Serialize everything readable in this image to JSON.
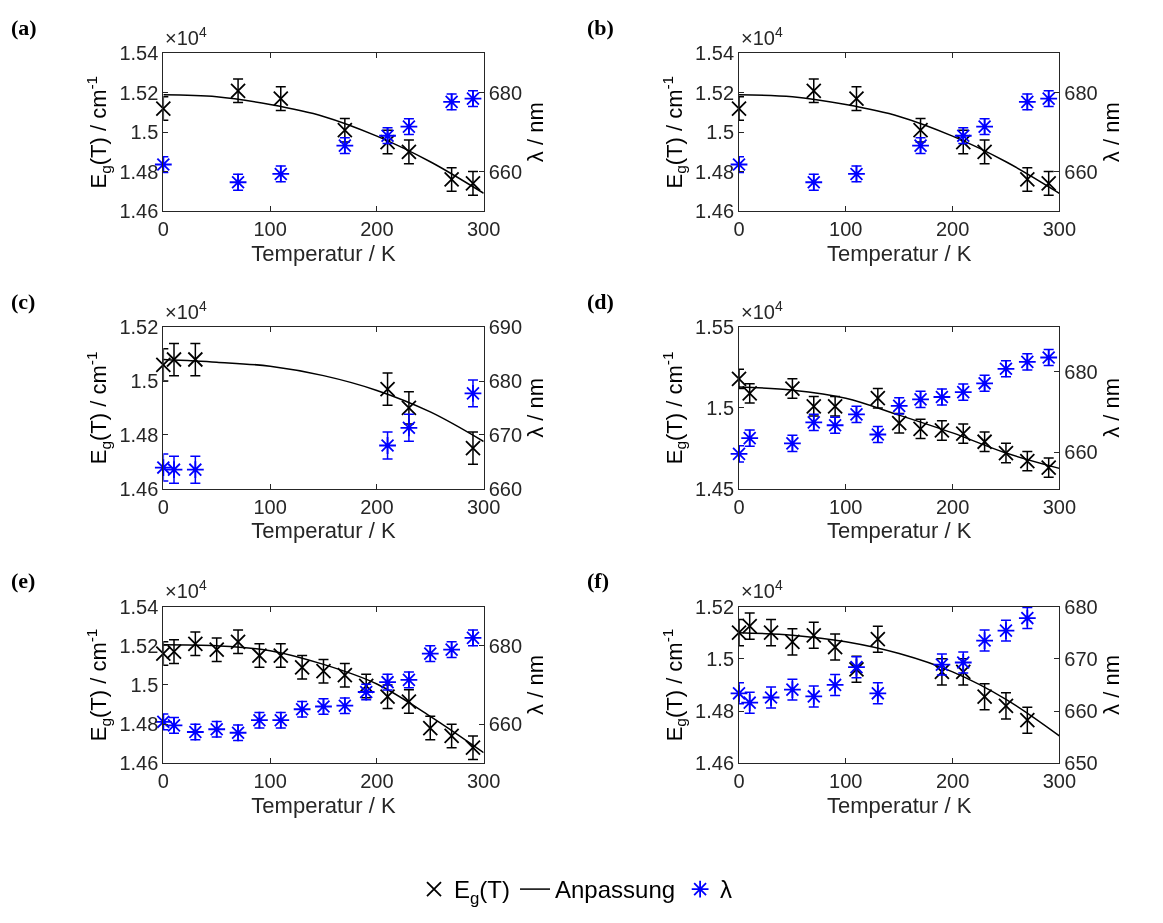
{
  "chart_data": [
    {
      "type": "scatter",
      "title": "(a)",
      "xlabel": "Temperatur / K",
      "ylabel": "E$_{g}$(T) / cm$^{-1}$",
      "y2label": "λ / nm",
      "annotations": [
        "×10$^{4}$"
      ],
      "legend": "bottom",
      "xlim": [
        0,
        300
      ],
      "xticks": [
        0,
        100,
        200,
        300
      ],
      "ylim": [
        1.46,
        1.54
      ],
      "yticks": [
        1.46,
        1.48,
        1.5,
        1.52,
        1.54
      ],
      "y2lim": [
        650,
        690
      ],
      "y2ticks": [
        660,
        680
      ],
      "series": [
        {
          "name": "E$_{g}$(T)",
          "marker": "cross",
          "color": "#000000",
          "x": [
            0,
            70,
            110,
            170,
            210,
            230,
            270,
            290
          ],
          "values": [
            1.512,
            1.521,
            1.517,
            1.501,
            1.495,
            1.49,
            1.476,
            1.474
          ],
          "errors": [
            0.006,
            0.006,
            0.006,
            0.006,
            0.006,
            0.006,
            0.006,
            0.006
          ]
        },
        {
          "name": "Anpassung",
          "type": "line",
          "color": "#000000",
          "x": [
            0,
            50,
            100,
            150,
            200,
            250,
            300
          ],
          "values": [
            1.519,
            1.518,
            1.514,
            1.508,
            1.498,
            1.485,
            1.469
          ]
        },
        {
          "name": "λ",
          "marker": "cross",
          "axis": "y2",
          "color": "#0000ff",
          "x": [
            0,
            70,
            110,
            170,
            210,
            230,
            270,
            290
          ],
          "values": [
            661.8,
            657.3,
            659.4,
            666.6,
            669.1,
            671.4,
            677.7,
            678.5
          ],
          "errors": [
            2,
            2,
            2,
            2,
            2,
            2,
            2,
            2
          ]
        }
      ]
    },
    {
      "type": "scatter",
      "title": "(b)",
      "xlabel": "Temperatur / K",
      "ylabel": "E$_{g}$(T) / cm$^{-1}$",
      "y2label": "λ / nm",
      "annotations": [
        "×10$^{4}$"
      ],
      "legend": "bottom",
      "xlim": [
        0,
        300
      ],
      "xticks": [
        0,
        100,
        200,
        300
      ],
      "ylim": [
        1.46,
        1.54
      ],
      "yticks": [
        1.46,
        1.48,
        1.5,
        1.52,
        1.54
      ],
      "y2lim": [
        650,
        690
      ],
      "y2ticks": [
        660,
        680
      ],
      "series": [
        {
          "name": "E$_{g}$(T)",
          "marker": "cross",
          "color": "#000000",
          "x": [
            0,
            70,
            110,
            170,
            210,
            230,
            270,
            290
          ],
          "values": [
            1.512,
            1.521,
            1.517,
            1.501,
            1.495,
            1.49,
            1.476,
            1.474
          ],
          "errors": [
            0.006,
            0.006,
            0.006,
            0.006,
            0.006,
            0.006,
            0.006,
            0.006
          ]
        },
        {
          "name": "Anpassung",
          "type": "line",
          "color": "#000000",
          "x": [
            0,
            50,
            100,
            150,
            200,
            250,
            300
          ],
          "values": [
            1.519,
            1.518,
            1.514,
            1.508,
            1.498,
            1.485,
            1.469
          ]
        },
        {
          "name": "λ",
          "marker": "cross",
          "axis": "y2",
          "color": "#0000ff",
          "x": [
            0,
            70,
            110,
            170,
            210,
            230,
            270,
            290
          ],
          "values": [
            661.8,
            657.3,
            659.4,
            666.6,
            669.1,
            671.4,
            677.7,
            678.5
          ],
          "errors": [
            2,
            2,
            2,
            2,
            2,
            2,
            2,
            2
          ]
        }
      ]
    },
    {
      "type": "scatter",
      "title": "(c)",
      "xlabel": "Temperatur / K",
      "ylabel": "E$_{g}$(T) / cm$^{-1}$",
      "y2label": "λ / nm",
      "annotations": [
        "×10$^{4}$"
      ],
      "legend": "bottom",
      "xlim": [
        0,
        300
      ],
      "xticks": [
        0,
        100,
        200,
        300
      ],
      "ylim": [
        1.46,
        1.52
      ],
      "yticks": [
        1.46,
        1.48,
        1.5,
        1.52
      ],
      "y2lim": [
        660,
        690
      ],
      "y2ticks": [
        660,
        670,
        680,
        690
      ],
      "series": [
        {
          "name": "E$_{g}$(T)",
          "marker": "cross",
          "color": "#000000",
          "x": [
            0,
            10,
            30,
            210,
            230,
            290
          ],
          "values": [
            1.506,
            1.508,
            1.508,
            1.497,
            1.49,
            1.475
          ],
          "errors": [
            0.006,
            0.006,
            0.006,
            0.006,
            0.006,
            0.006
          ]
        },
        {
          "name": "Anpassung",
          "type": "line",
          "color": "#000000",
          "x": [
            0,
            50,
            100,
            150,
            200,
            250,
            300
          ],
          "values": [
            1.508,
            1.507,
            1.5055,
            1.502,
            1.4965,
            1.4885,
            1.4775
          ]
        },
        {
          "name": "λ",
          "marker": "cross",
          "axis": "y2",
          "color": "#0000ff",
          "x": [
            0,
            10,
            30,
            210,
            230,
            290
          ],
          "values": [
            663.9,
            663.5,
            663.5,
            668.0,
            671.3,
            677.7
          ],
          "errors": [
            2.5,
            2.5,
            2.5,
            2.5,
            2.5,
            2.5
          ]
        }
      ]
    },
    {
      "type": "scatter",
      "title": "(d)",
      "xlabel": "Temperatur / K",
      "ylabel": "E$_{g}$(T) / cm$^{-1}$",
      "y2label": "λ / nm",
      "annotations": [
        "×10$^{4}$"
      ],
      "legend": "bottom",
      "xlim": [
        0,
        300
      ],
      "xticks": [
        0,
        100,
        200,
        300
      ],
      "ylim": [
        1.45,
        1.55
      ],
      "yticks": [
        1.45,
        1.5,
        1.55
      ],
      "y2lim": [
        651,
        691
      ],
      "y2ticks": [
        660,
        680
      ],
      "series": [
        {
          "name": "E$_{g}$(T)",
          "marker": "cross",
          "color": "#000000",
          "x": [
            0,
            10,
            50,
            70,
            90,
            130,
            150,
            170,
            190,
            210,
            230,
            250,
            270,
            290
          ],
          "values": [
            1.518,
            1.509,
            1.512,
            1.501,
            1.501,
            1.506,
            1.4905,
            1.487,
            1.486,
            1.484,
            1.479,
            1.472,
            1.467,
            1.463
          ],
          "errors": [
            0.006,
            0.006,
            0.006,
            0.006,
            0.006,
            0.006,
            0.006,
            0.006,
            0.006,
            0.006,
            0.006,
            0.006,
            0.006,
            0.006
          ]
        },
        {
          "name": "Anpassung",
          "type": "line",
          "color": "#000000",
          "x": [
            0,
            50,
            100,
            150,
            200,
            250,
            300
          ],
          "values": [
            1.513,
            1.511,
            1.506,
            1.4955,
            1.4845,
            1.472,
            1.4625
          ]
        },
        {
          "name": "λ",
          "marker": "cross",
          "axis": "y2",
          "color": "#0000ff",
          "x": [
            0,
            10,
            50,
            70,
            90,
            110,
            130,
            150,
            170,
            190,
            210,
            230,
            250,
            270,
            290
          ],
          "values": [
            659.6,
            663.5,
            662.2,
            667.4,
            666.7,
            669.4,
            664.4,
            671.5,
            673.1,
            673.7,
            674.9,
            677.1,
            680.7,
            682.4,
            683.5
          ],
          "errors": [
            2,
            2,
            2,
            2,
            2,
            2,
            2,
            2,
            2,
            2,
            2,
            2,
            2,
            2,
            2
          ]
        }
      ]
    },
    {
      "type": "scatter",
      "title": "(e)",
      "xlabel": "Temperatur / K",
      "ylabel": "E$_{g}$(T) / cm$^{-1}$",
      "y2label": "λ / nm",
      "annotations": [
        "×10$^{4}$"
      ],
      "legend": "bottom",
      "xlim": [
        0,
        300
      ],
      "xticks": [
        0,
        100,
        200,
        300
      ],
      "ylim": [
        1.46,
        1.54
      ],
      "yticks": [
        1.46,
        1.48,
        1.5,
        1.52,
        1.54
      ],
      "y2lim": [
        650,
        690
      ],
      "y2ticks": [
        660,
        680
      ],
      "series": [
        {
          "name": "E$_{g}$(T)",
          "marker": "cross",
          "color": "#000000",
          "x": [
            0,
            10,
            30,
            50,
            70,
            90,
            110,
            130,
            150,
            170,
            190,
            210,
            230,
            250,
            270,
            290
          ],
          "values": [
            1.516,
            1.517,
            1.521,
            1.518,
            1.522,
            1.515,
            1.515,
            1.509,
            1.507,
            1.505,
            1.4995,
            1.494,
            1.4915,
            1.478,
            1.474,
            1.468
          ],
          "errors": [
            0.006,
            0.006,
            0.006,
            0.006,
            0.006,
            0.006,
            0.006,
            0.006,
            0.006,
            0.006,
            0.006,
            0.006,
            0.006,
            0.006,
            0.006,
            0.006
          ]
        },
        {
          "name": "Anpassung",
          "type": "line",
          "color": "#000000",
          "x": [
            0,
            50,
            100,
            150,
            200,
            250,
            300
          ],
          "values": [
            1.5205,
            1.52,
            1.5175,
            1.5105,
            1.5005,
            1.484,
            1.4655
          ]
        },
        {
          "name": "λ",
          "marker": "cross",
          "axis": "y2",
          "color": "#0000ff",
          "x": [
            0,
            10,
            30,
            50,
            70,
            90,
            110,
            130,
            150,
            170,
            190,
            210,
            230,
            250,
            270,
            290
          ],
          "values": [
            660.6,
            659.7,
            658.0,
            658.7,
            657.8,
            661.0,
            661.0,
            663.8,
            664.5,
            664.7,
            668.2,
            670.7,
            671.3,
            678.0,
            679.0,
            682.0
          ],
          "errors": [
            2,
            2,
            2,
            2,
            2,
            2,
            2,
            2,
            2,
            2,
            2,
            2,
            2,
            2,
            2,
            2
          ]
        }
      ]
    },
    {
      "type": "scatter",
      "title": "(f)",
      "xlabel": "Temperatur / K",
      "ylabel": "E$_{g}$(T) / cm$^{-1}$",
      "y2label": "λ / nm",
      "annotations": [
        "×10$^{4}$"
      ],
      "legend": "bottom",
      "xlim": [
        0,
        300
      ],
      "xticks": [
        0,
        100,
        200,
        300
      ],
      "ylim": [
        1.46,
        1.52
      ],
      "yticks": [
        1.46,
        1.48,
        1.5,
        1.52
      ],
      "y2lim": [
        650,
        680
      ],
      "y2ticks": [
        650,
        660,
        670,
        680
      ],
      "series": [
        {
          "name": "E$_{g}$(T)",
          "marker": "cross",
          "color": "#000000",
          "x": [
            0,
            10,
            30,
            50,
            70,
            90,
            110,
            130,
            190,
            210,
            230,
            250,
            270
          ],
          "values": [
            1.51,
            1.5125,
            1.51,
            1.5065,
            1.509,
            1.5045,
            1.496,
            1.5075,
            1.495,
            1.495,
            1.4855,
            1.482,
            1.4765
          ],
          "errors": [
            0.005,
            0.005,
            0.005,
            0.005,
            0.005,
            0.005,
            0.005,
            0.005,
            0.005,
            0.005,
            0.005,
            0.005,
            0.005
          ]
        },
        {
          "name": "Anpassung",
          "type": "line",
          "color": "#000000",
          "x": [
            0,
            50,
            100,
            150,
            200,
            250,
            300
          ],
          "values": [
            1.51,
            1.509,
            1.5065,
            1.502,
            1.495,
            1.4845,
            1.4705
          ]
        },
        {
          "name": "λ",
          "marker": "cross",
          "axis": "y2",
          "color": "#0000ff",
          "x": [
            0,
            10,
            30,
            50,
            70,
            90,
            110,
            130,
            190,
            210,
            230,
            250,
            270
          ],
          "values": [
            663.4,
            661.6,
            662.6,
            664.1,
            662.8,
            665.0,
            668.4,
            663.4,
            668.9,
            669.3,
            673.5,
            675.4,
            677.8
          ],
          "errors": [
            2,
            2,
            2,
            2,
            2,
            2,
            2,
            2,
            2,
            2,
            2,
            2,
            2
          ]
        }
      ]
    }
  ]
}
